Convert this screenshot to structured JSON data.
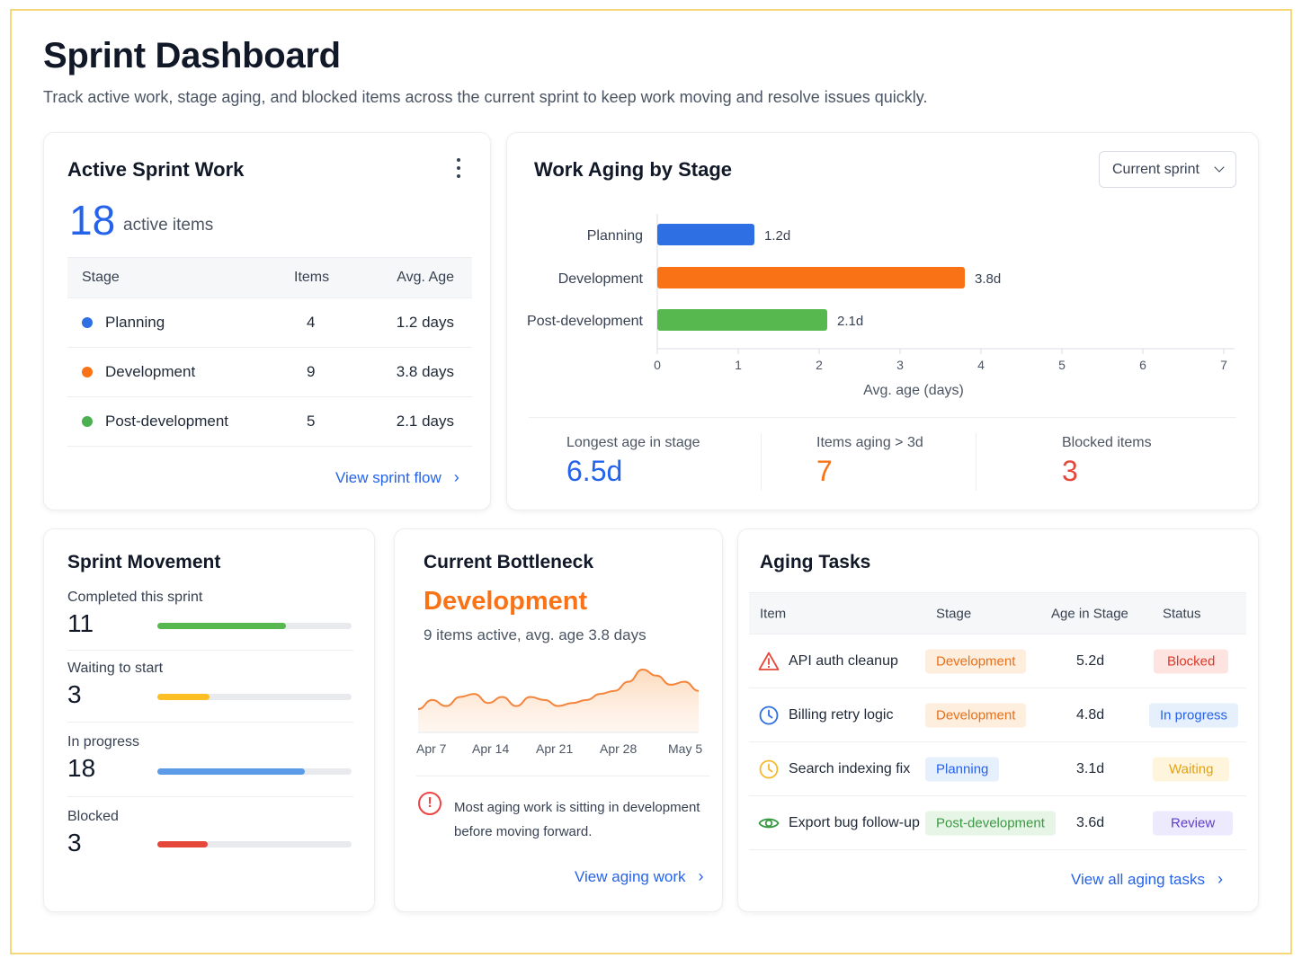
{
  "header": {
    "title": "Sprint Dashboard",
    "subtitle": "Track active work, stage aging, and blocked items across the current sprint to keep work moving and resolve issues quickly."
  },
  "active_sprint": {
    "title": "Active Sprint Work",
    "count": "18",
    "count_caption": "active items",
    "columns": [
      "Stage",
      "Items",
      "Avg. Age"
    ],
    "rows": [
      {
        "stage": "Planning",
        "items": "4",
        "age": "1.2 days",
        "color": "#2f6fe4"
      },
      {
        "stage": "Development",
        "items": "9",
        "age": "3.8 days",
        "color": "#f97316"
      },
      {
        "stage": "Post-development",
        "items": "5",
        "age": "2.1 days",
        "color": "#4caf50"
      }
    ],
    "link": "View sprint flow"
  },
  "aging_by_stage": {
    "title": "Work Aging by Stage",
    "filter_value": "Current sprint",
    "stats": [
      {
        "label": "Longest age in stage",
        "value": "6.5d",
        "color": "#2563eb"
      },
      {
        "label": "Items aging > 3d",
        "value": "7",
        "color": "#f97316"
      },
      {
        "label": "Blocked items",
        "value": "3",
        "color": "#e5483b"
      }
    ]
  },
  "chart_data": {
    "type": "bar",
    "orientation": "horizontal",
    "categories": [
      "Planning",
      "Development",
      "Post-development"
    ],
    "values": [
      1.2,
      3.8,
      2.1
    ],
    "value_labels": [
      "1.2d",
      "3.8d",
      "2.1d"
    ],
    "colors": [
      "#2f6fe4",
      "#f97316",
      "#57b84f"
    ],
    "xlabel": "Avg. age (days)",
    "xlim": [
      0,
      7
    ],
    "xticks": [
      0,
      1,
      2,
      3,
      4,
      5,
      6,
      7
    ],
    "grid": false
  },
  "movement": {
    "title": "Sprint Movement",
    "items": [
      {
        "label": "Completed this sprint",
        "value": "11",
        "fraction": 0.66,
        "color": "#57b84f"
      },
      {
        "label": "Waiting to start",
        "value": "3",
        "fraction": 0.27,
        "color": "#fbbf24"
      },
      {
        "label": "In progress",
        "value": "18",
        "fraction": 0.76,
        "color": "#5b9be8"
      },
      {
        "label": "Blocked",
        "value": "3",
        "fraction": 0.26,
        "color": "#e5483b"
      }
    ]
  },
  "bottleneck": {
    "title": "Current Bottleneck",
    "stage": "Development",
    "summary": "9 items active, avg. age 3.8 days",
    "sparkline": {
      "x_labels": [
        "Apr 7",
        "Apr 14",
        "Apr 21",
        "Apr 28",
        "May 5"
      ],
      "values": [
        3.0,
        3.3,
        3.1,
        3.4,
        3.5,
        3.2,
        3.4,
        3.1,
        3.4,
        3.3,
        3.1,
        3.2,
        3.3,
        3.5,
        3.6,
        3.9,
        4.3,
        4.1,
        3.8,
        3.9,
        3.6
      ]
    },
    "alert": "Most aging work is sitting in development before moving forward.",
    "link": "View aging work"
  },
  "aging_tasks": {
    "title": "Aging Tasks",
    "columns": [
      "Item",
      "Stage",
      "Age in Stage",
      "Status"
    ],
    "rows": [
      {
        "item": "API auth cleanup",
        "icon": "warning-icon",
        "stage": "Development",
        "age": "5.2d",
        "status": "Blocked"
      },
      {
        "item": "Billing retry logic",
        "icon": "clock-icon",
        "stage": "Development",
        "age": "4.8d",
        "status": "In progress"
      },
      {
        "item": "Search indexing fix",
        "icon": "clock-icon",
        "stage": "Planning",
        "age": "3.1d",
        "status": "Waiting"
      },
      {
        "item": "Export bug follow-up",
        "icon": "eye-icon",
        "stage": "Post-development",
        "age": "3.6d",
        "status": "Review"
      }
    ],
    "link": "View all aging tasks"
  }
}
